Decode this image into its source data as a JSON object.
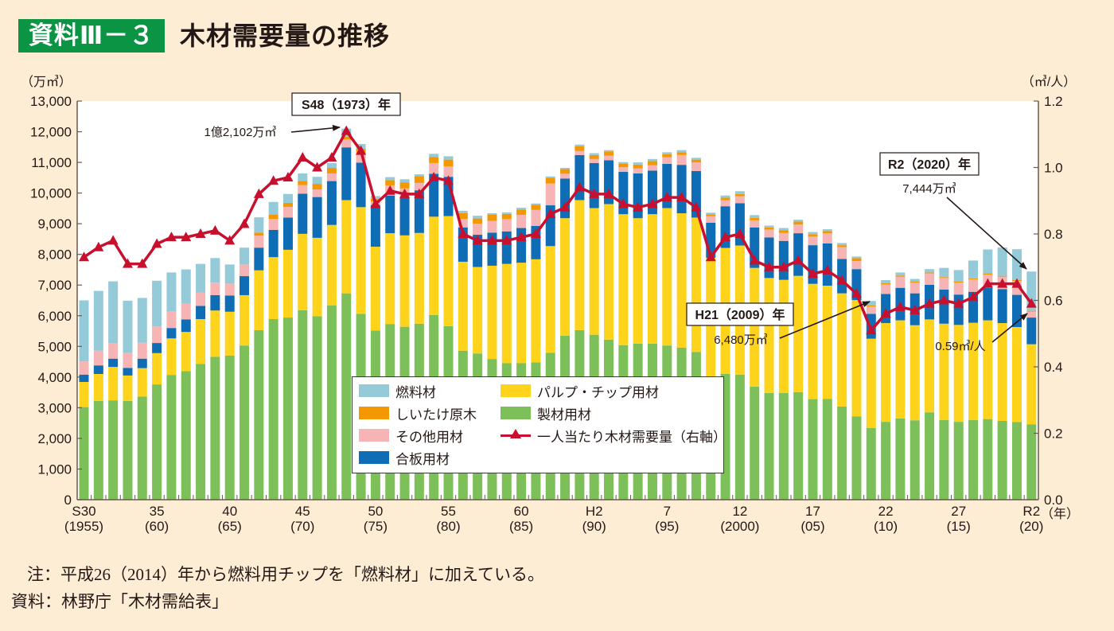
{
  "header": {
    "badge": "資料Ⅲ－３",
    "title": "木材需要量の推移"
  },
  "colors": {
    "badge_bg": "#0B9444",
    "fuel": "#95CAD9",
    "shiitake": "#F39800",
    "other": "#F6B4B5",
    "plywood": "#0F6DB6",
    "pulp": "#FDD31C",
    "sawn": "#7DC05A",
    "per_capita": "#C8102E"
  },
  "legend": {
    "items": [
      {
        "key": "fuel",
        "label": "燃料材"
      },
      {
        "key": "shiitake",
        "label": "しいたけ原木"
      },
      {
        "key": "other",
        "label": "その他用材"
      },
      {
        "key": "plywood",
        "label": "合板用材"
      },
      {
        "key": "pulp",
        "label": "パルプ・チップ用材"
      },
      {
        "key": "sawn",
        "label": "製材用材"
      },
      {
        "key": "per_capita",
        "label": "一人当たり木材需要量（右軸）"
      }
    ]
  },
  "annotations": {
    "peak_box": "S48（1973）年",
    "peak_value": "1億2,102万㎥",
    "h21_box": "H21（2009）年",
    "h21_value": "6,480万㎥",
    "r2_box": "R2（2020）年",
    "r2_value": "7,444万㎥",
    "per_capita_value": "0.59㎥/人"
  },
  "footer": {
    "note": "注：平成26（2014）年から燃料用チップを「燃料材」に加えている。",
    "source": "資料：林野庁「木材需給表」"
  },
  "chart_data": {
    "type": "bar",
    "stacked": true,
    "title": "木材需要量の推移",
    "ylabel": "（万㎥）",
    "y2label": "（㎥/人）",
    "xlabel": "（年）",
    "ylim": [
      0,
      13000
    ],
    "y2lim": [
      0,
      1.2
    ],
    "grid": false,
    "legend_position": "bottom-center",
    "yticks_left": [
      0,
      1000,
      2000,
      3000,
      4000,
      5000,
      6000,
      7000,
      8000,
      9000,
      10000,
      11000,
      12000,
      13000
    ],
    "ytick_labels_left": [
      "0",
      "1,000",
      "2,000",
      "3,000",
      "4,000",
      "5,000",
      "6,000",
      "7,000",
      "8,000",
      "9,000",
      "10,000",
      "11,000",
      "12,000",
      "13,000"
    ],
    "yticks_right": [
      0,
      0.2,
      0.4,
      0.6,
      0.8,
      1.0,
      1.2
    ],
    "ytick_labels_right": [
      "0.0",
      "0.2",
      "0.4",
      "0.6",
      "0.8",
      "1.0",
      "1.2"
    ],
    "xtick_years": [
      1955,
      1960,
      1965,
      1970,
      1975,
      1980,
      1985,
      1990,
      1995,
      2000,
      2005,
      2010,
      2015,
      2020
    ],
    "xtick_labels_era": [
      "S30",
      "35",
      "40",
      "45",
      "50",
      "55",
      "60",
      "H2",
      "7",
      "12",
      "17",
      "22",
      "27",
      "R2"
    ],
    "xtick_labels_year": [
      "(1955)",
      "(60)",
      "(65)",
      "(70)",
      "(75)",
      "(80)",
      "(85)",
      "(90)",
      "(95)",
      "(2000)",
      "(05)",
      "(10)",
      "(15)",
      "(20)"
    ],
    "x": [
      1955,
      1956,
      1957,
      1958,
      1959,
      1960,
      1961,
      1962,
      1963,
      1964,
      1965,
      1966,
      1967,
      1968,
      1969,
      1970,
      1971,
      1972,
      1973,
      1974,
      1975,
      1976,
      1977,
      1978,
      1979,
      1980,
      1981,
      1982,
      1983,
      1984,
      1985,
      1986,
      1987,
      1988,
      1989,
      1990,
      1991,
      1992,
      1993,
      1994,
      1995,
      1996,
      1997,
      1998,
      1999,
      2000,
      2001,
      2002,
      2003,
      2004,
      2005,
      2006,
      2007,
      2008,
      2009,
      2010,
      2011,
      2012,
      2013,
      2014,
      2015,
      2016,
      2017,
      2018,
      2019,
      2020
    ],
    "series": [
      {
        "key": "sawn",
        "name": "製材用材",
        "axis": "left",
        "values": [
          3020,
          3220,
          3240,
          3220,
          3360,
          3760,
          4070,
          4190,
          4430,
          4660,
          4700,
          5030,
          5530,
          5890,
          5940,
          6180,
          5980,
          6340,
          6730,
          6060,
          5520,
          5730,
          5640,
          5740,
          6020,
          5660,
          4860,
          4770,
          4590,
          4450,
          4450,
          4480,
          4790,
          5350,
          5530,
          5380,
          5220,
          5040,
          5090,
          5090,
          5030,
          4960,
          4820,
          3950,
          4100,
          4080,
          3690,
          3480,
          3480,
          3510,
          3280,
          3290,
          3040,
          2720,
          2340,
          2540,
          2650,
          2590,
          2850,
          2600,
          2540,
          2600,
          2630,
          2570,
          2530,
          2460
        ]
      },
      {
        "key": "pulp",
        "name": "パルプ・チップ用材",
        "axis": "left",
        "values": [
          820,
          880,
          1090,
          830,
          930,
          1020,
          1190,
          1280,
          1460,
          1510,
          1430,
          1640,
          1950,
          2020,
          2210,
          2490,
          2560,
          2620,
          3040,
          3480,
          2730,
          2960,
          2980,
          2960,
          3210,
          3590,
          2900,
          2820,
          3040,
          3240,
          3280,
          3360,
          3480,
          3830,
          4240,
          4130,
          4420,
          4270,
          4090,
          4220,
          4480,
          4380,
          4380,
          3940,
          4110,
          4210,
          3870,
          3750,
          3690,
          3790,
          3760,
          3690,
          3690,
          3790,
          2910,
          3220,
          3200,
          3100,
          3030,
          3140,
          3160,
          3170,
          3220,
          3190,
          3100,
          2610
        ]
      },
      {
        "key": "plywood",
        "name": "合板用材",
        "axis": "left",
        "values": [
          240,
          280,
          270,
          250,
          310,
          330,
          340,
          410,
          430,
          500,
          530,
          620,
          740,
          890,
          1050,
          1310,
          1330,
          1430,
          1720,
          1450,
          1360,
          1230,
          1230,
          1390,
          1400,
          1280,
          1120,
          1050,
          1080,
          1060,
          1130,
          1090,
          1330,
          1290,
          1470,
          1470,
          1430,
          1380,
          1460,
          1420,
          1440,
          1580,
          1520,
          1140,
          1360,
          1380,
          1320,
          1320,
          1270,
          1390,
          1260,
          1380,
          1120,
          1010,
          810,
          950,
          1060,
          1040,
          1130,
          1110,
          990,
          1010,
          1060,
          1110,
          1050,
          870
        ]
      },
      {
        "key": "other",
        "name": "その他用材",
        "axis": "left",
        "values": [
          430,
          480,
          510,
          490,
          520,
          540,
          550,
          510,
          440,
          410,
          390,
          380,
          390,
          360,
          350,
          280,
          250,
          250,
          260,
          260,
          110,
          330,
          300,
          240,
          350,
          340,
          280,
          360,
          380,
          400,
          430,
          520,
          710,
          160,
          130,
          130,
          150,
          150,
          160,
          180,
          220,
          320,
          280,
          220,
          200,
          230,
          230,
          260,
          260,
          280,
          280,
          330,
          390,
          260,
          240,
          310,
          360,
          350,
          370,
          380,
          390,
          410,
          430,
          400,
          450,
          190
        ]
      },
      {
        "key": "shiitake",
        "name": "しいたけ原木",
        "axis": "left",
        "values": [
          0,
          0,
          0,
          0,
          0,
          0,
          0,
          0,
          0,
          0,
          0,
          0,
          100,
          130,
          130,
          140,
          180,
          180,
          90,
          200,
          90,
          170,
          200,
          220,
          190,
          220,
          190,
          170,
          210,
          170,
          170,
          170,
          190,
          150,
          160,
          130,
          140,
          120,
          130,
          130,
          100,
          90,
          90,
          60,
          80,
          70,
          80,
          70,
          90,
          100,
          80,
          70,
          60,
          100,
          40,
          40,
          40,
          30,
          30,
          30,
          30,
          30,
          40,
          30,
          40,
          30
        ]
      },
      {
        "key": "fuel",
        "name": "燃料材",
        "axis": "left",
        "values": [
          1990,
          1950,
          2010,
          1700,
          1460,
          1490,
          1260,
          1120,
          930,
          800,
          620,
          550,
          500,
          420,
          290,
          240,
          230,
          160,
          260,
          150,
          90,
          100,
          100,
          60,
          110,
          110,
          70,
          90,
          40,
          50,
          60,
          40,
          40,
          40,
          50,
          60,
          40,
          50,
          70,
          70,
          60,
          70,
          60,
          50,
          70,
          90,
          90,
          60,
          70,
          60,
          70,
          60,
          70,
          50,
          140,
          100,
          100,
          90,
          110,
          300,
          380,
          580,
          780,
          925,
          1000,
          1280
        ]
      }
    ],
    "line_series": {
      "key": "per_capita",
      "name": "一人当たり木材需要量（右軸）",
      "axis": "right",
      "type": "line",
      "marker": "triangle",
      "values": [
        0.73,
        0.76,
        0.78,
        0.71,
        0.71,
        0.77,
        0.79,
        0.79,
        0.8,
        0.81,
        0.78,
        0.83,
        0.92,
        0.96,
        0.97,
        1.03,
        1.0,
        1.03,
        1.11,
        1.05,
        0.89,
        0.93,
        0.92,
        0.92,
        0.97,
        0.96,
        0.8,
        0.78,
        0.78,
        0.78,
        0.79,
        0.8,
        0.86,
        0.88,
        0.94,
        0.92,
        0.92,
        0.89,
        0.88,
        0.89,
        0.91,
        0.91,
        0.88,
        0.73,
        0.79,
        0.8,
        0.72,
        0.7,
        0.7,
        0.72,
        0.68,
        0.69,
        0.66,
        0.62,
        0.51,
        0.56,
        0.58,
        0.57,
        0.59,
        0.6,
        0.59,
        0.61,
        0.65,
        0.65,
        0.65,
        0.59
      ]
    },
    "totals_annotated": {
      "1973": 12102,
      "2009": 6480,
      "2020": 7444
    },
    "per_capita_annotated": {
      "2020": 0.59
    }
  }
}
